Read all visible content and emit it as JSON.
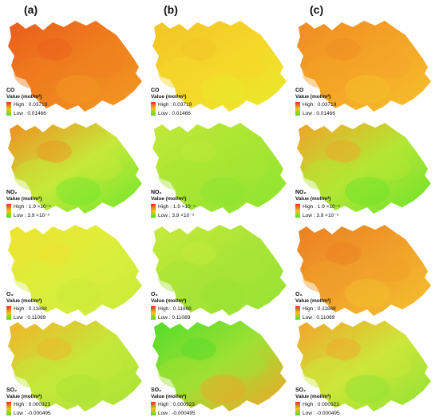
{
  "columns": [
    "(a)",
    "(b)",
    "(c)"
  ],
  "rows": [
    {
      "pollutant": "CO",
      "unit": "Value (mol/m²)",
      "high": "High : 0.03719",
      "low": "Low : 0.01466",
      "fills": [
        [
          "#ef7f1f",
          "#ea5d1c",
          "#f29a22"
        ],
        [
          "#f6d62a",
          "#f1c426",
          "#e8ec2a"
        ],
        [
          "#f4a527",
          "#f08b22",
          "#f6c02b"
        ]
      ]
    },
    {
      "pollutant": "NO₂",
      "unit": "Value (mol/m²)",
      "high": "High : 1.9 ×10⁻⁴",
      "low": "Low : 3.9 ×10⁻⁵",
      "fills": [
        [
          "#c6e83a",
          "#f08d22",
          "#6ee62a"
        ],
        [
          "#a8e534",
          "#c2e83a",
          "#8ae52e"
        ],
        [
          "#b4e634",
          "#f2a228",
          "#6ae22a"
        ]
      ]
    },
    {
      "pollutant": "O₃",
      "unit": "Value (mol/m²)",
      "high": "High : 0.11868",
      "low": "Low : 0.11089",
      "fills": [
        [
          "#dcee3c",
          "#f0e32f",
          "#c8ea3a"
        ],
        [
          "#a8e436",
          "#c7ea3c",
          "#96e234"
        ],
        [
          "#f0a02a",
          "#ec7f22",
          "#f4c22e"
        ]
      ]
    },
    {
      "pollutant": "SO₂",
      "unit": "Value (mol/m²)",
      "high": "High : 0.000923",
      "low": "Low : -0.000495",
      "fills": [
        [
          "#c4e83a",
          "#f2b22a",
          "#a8e236"
        ],
        [
          "#a0e034",
          "#52dc2a",
          "#f2a228"
        ],
        [
          "#cde63a",
          "#f2a42a",
          "#8ee232"
        ]
      ]
    }
  ]
}
